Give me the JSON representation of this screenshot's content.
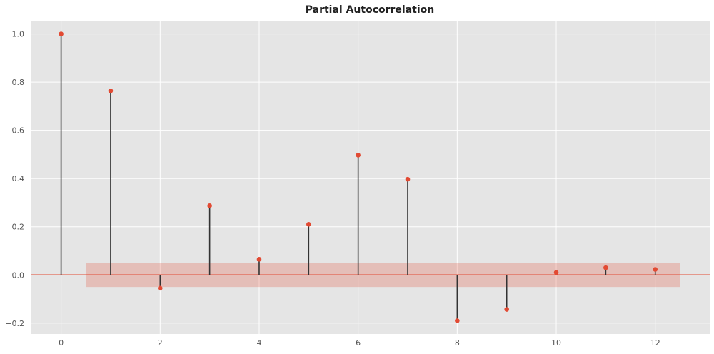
{
  "chart_data": {
    "type": "stem",
    "title": "Partial Autocorrelation",
    "xlabel": "",
    "ylabel": "",
    "x": [
      0,
      1,
      2,
      3,
      4,
      5,
      6,
      7,
      8,
      9,
      10,
      11,
      12
    ],
    "values": [
      1.0,
      0.764,
      -0.055,
      0.287,
      0.065,
      0.21,
      0.497,
      0.397,
      -0.19,
      -0.143,
      0.01,
      0.03,
      0.023
    ],
    "confidence_band": {
      "x_range": [
        0.5,
        12.5
      ],
      "lower": -0.05,
      "upper": 0.05
    },
    "xlim": [
      -0.6,
      13.1
    ],
    "ylim": [
      -0.245,
      1.055
    ],
    "x_ticks": [
      0,
      2,
      4,
      6,
      8,
      10,
      12
    ],
    "x_tick_labels": [
      "0",
      "2",
      "4",
      "6",
      "8",
      "10",
      "12"
    ],
    "y_ticks": [
      -0.2,
      0.0,
      0.2,
      0.4,
      0.6,
      0.8,
      1.0
    ],
    "y_tick_labels": [
      "−0.2",
      "0.0",
      "0.2",
      "0.4",
      "0.6",
      "0.8",
      "1.0"
    ],
    "grid": true,
    "colors": {
      "background": "#e5e5e5",
      "grid": "#ffffff",
      "marker": "#e24a33",
      "stem": "#333333",
      "baseline": "#e24a33",
      "band": "#e24a33"
    }
  }
}
